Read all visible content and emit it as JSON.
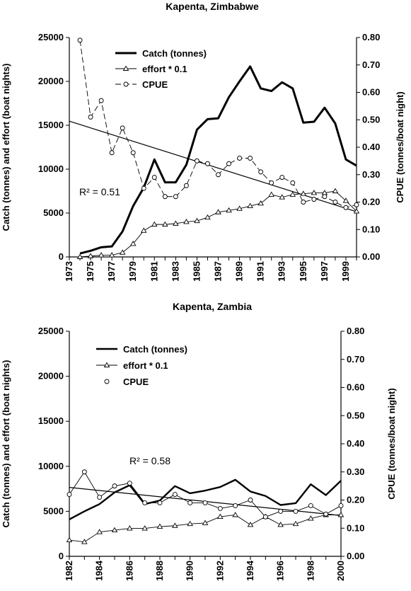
{
  "chart_data": [
    {
      "type": "line",
      "title": "Kapenta, Zimbabwe",
      "ylabel_left": "Catch (tonnes) and effort (boat nights)",
      "ylabel_right": "CPUE (tonnes/boat night)",
      "ylim_left": [
        0,
        25000
      ],
      "ylim_right": [
        0,
        0.8
      ],
      "yticks_left": [
        "0",
        "5000",
        "10000",
        "15000",
        "20000",
        "25000"
      ],
      "yticks_right": [
        "0.00",
        "0.10",
        "0.20",
        "0.30",
        "0.40",
        "0.50",
        "0.60",
        "0.70",
        "0.80"
      ],
      "xlim": [
        1973,
        2000
      ],
      "xticks": [
        "1973",
        "1975",
        "1977",
        "1979",
        "1981",
        "1983",
        "1985",
        "1987",
        "1989",
        "1991",
        "1993",
        "1995",
        "1997",
        "1999"
      ],
      "legend": [
        "Catch (tonnes)",
        "effort * 0.1",
        "CPUE"
      ],
      "r2_label": "R² = 0.51",
      "series": [
        {
          "name": "Catch (tonnes)",
          "axis": "left",
          "x": [
            1974,
            1975,
            1976,
            1977,
            1978,
            1979,
            1980,
            1981,
            1982,
            1983,
            1984,
            1985,
            1986,
            1987,
            1988,
            1989,
            1990,
            1991,
            1992,
            1993,
            1994,
            1995,
            1996,
            1997,
            1998,
            1999,
            2000
          ],
          "values": [
            400,
            700,
            1100,
            1200,
            2900,
            5800,
            7900,
            11100,
            8500,
            8500,
            10500,
            14500,
            15700,
            15800,
            18200,
            20000,
            21700,
            19200,
            18900,
            19900,
            19200,
            15300,
            15400,
            17000,
            15200,
            11100,
            10400
          ]
        },
        {
          "name": "effort * 0.1",
          "axis": "left",
          "x": [
            1974,
            1975,
            1976,
            1977,
            1978,
            1979,
            1980,
            1981,
            1982,
            1983,
            1984,
            1985,
            1986,
            1987,
            1988,
            1989,
            1990,
            1991,
            1992,
            1993,
            1994,
            1995,
            1996,
            1997,
            1998,
            1999,
            2000
          ],
          "values": [
            0,
            100,
            200,
            200,
            500,
            1500,
            3000,
            3700,
            3700,
            3800,
            4000,
            4100,
            4500,
            5100,
            5300,
            5500,
            5800,
            6100,
            7100,
            6800,
            7100,
            7200,
            7300,
            7300,
            7500,
            6400,
            5200
          ]
        },
        {
          "name": "CPUE",
          "axis": "right",
          "x": [
            1974,
            1975,
            1976,
            1977,
            1978,
            1979,
            1980,
            1981,
            1982,
            1983,
            1984,
            1985,
            1986,
            1987,
            1988,
            1989,
            1990,
            1991,
            1992,
            1993,
            1994,
            1995,
            1996,
            1997,
            1998,
            1999,
            2000
          ],
          "values": [
            0.79,
            0.51,
            0.57,
            0.38,
            0.47,
            0.38,
            0.25,
            0.29,
            0.22,
            0.22,
            0.26,
            0.35,
            0.34,
            0.3,
            0.34,
            0.36,
            0.36,
            0.31,
            0.27,
            0.29,
            0.27,
            0.2,
            0.21,
            0.22,
            0.2,
            0.18,
            0.19
          ]
        }
      ],
      "trendline": {
        "axis": "right",
        "x": [
          1973,
          2000
        ],
        "values": [
          0.495,
          0.165
        ]
      }
    },
    {
      "type": "line",
      "title": "Kapenta, Zambia",
      "ylabel_left": "Catch (tonnes) and effort (boat nights)",
      "ylabel_right": "CPUE (tonnes/boat night)",
      "ylim_left": [
        0,
        25000
      ],
      "ylim_right": [
        0,
        0.8
      ],
      "yticks_left": [
        "0",
        "5000",
        "10000",
        "15000",
        "20000",
        "25000"
      ],
      "yticks_right": [
        "0.00",
        "0.10",
        "0.20",
        "0.30",
        "0.40",
        "0.50",
        "0.60",
        "0.70",
        "0.80"
      ],
      "xlim": [
        1982,
        2000
      ],
      "xticks": [
        "1982",
        "1984",
        "1986",
        "1988",
        "1990",
        "1992",
        "1994",
        "1996",
        "1998",
        "2000"
      ],
      "legend": [
        "Catch (tonnes)",
        "effort * 0.1",
        "CPUE"
      ],
      "r2_label": "R² = 0.58",
      "series": [
        {
          "name": "Catch (tonnes)",
          "axis": "left",
          "x": [
            1982,
            1983,
            1984,
            1985,
            1986,
            1987,
            1988,
            1989,
            1990,
            1991,
            1992,
            1993,
            1994,
            1995,
            1996,
            1997,
            1998,
            1999,
            2000
          ],
          "values": [
            4100,
            5000,
            5800,
            7100,
            7900,
            5800,
            6200,
            7800,
            7000,
            7300,
            7700,
            8500,
            7200,
            6700,
            5700,
            5900,
            8000,
            6800,
            8400
          ]
        },
        {
          "name": "effort * 0.1",
          "axis": "left",
          "x": [
            1982,
            1983,
            1984,
            1985,
            1986,
            1987,
            1988,
            1989,
            1990,
            1991,
            1992,
            1993,
            1994,
            1995,
            1996,
            1997,
            1998,
            1999,
            2000
          ],
          "values": [
            1800,
            1600,
            2700,
            2900,
            3100,
            3100,
            3300,
            3400,
            3600,
            3700,
            4400,
            4600,
            3500,
            4400,
            3500,
            3600,
            4200,
            4600,
            4600
          ]
        },
        {
          "name": "CPUE",
          "axis": "right",
          "x": [
            1982,
            1983,
            1984,
            1985,
            1986,
            1987,
            1988,
            1989,
            1990,
            1991,
            1992,
            1993,
            1994,
            1995,
            1996,
            1997,
            1998,
            1999,
            2000
          ],
          "values": [
            0.22,
            0.3,
            0.21,
            0.25,
            0.26,
            0.19,
            0.19,
            0.22,
            0.19,
            0.19,
            0.17,
            0.18,
            0.2,
            0.14,
            0.16,
            0.16,
            0.18,
            0.15,
            0.18
          ]
        }
      ],
      "trendline": {
        "axis": "right",
        "x": [
          1982,
          2000
        ],
        "values": [
          0.245,
          0.145
        ]
      }
    }
  ]
}
